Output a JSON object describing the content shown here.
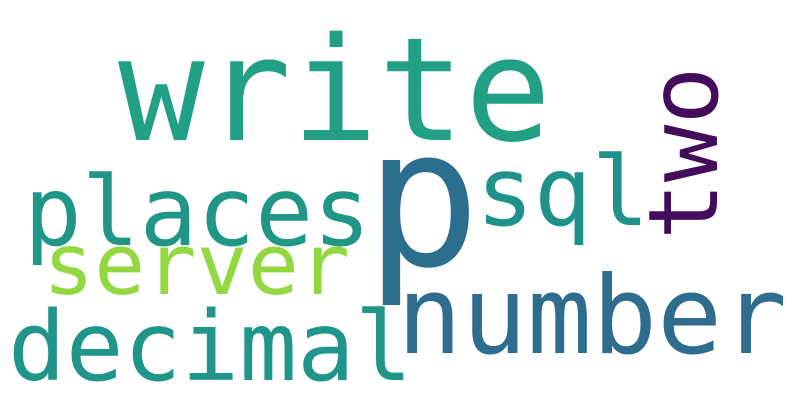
{
  "words": {
    "write": {
      "text": "write",
      "color": "#21a085"
    },
    "p": {
      "text": "p",
      "color": "#2c6e8e"
    },
    "places": {
      "text": "places",
      "color": "#209686"
    },
    "sql": {
      "text": "sql",
      "color": "#1f938b"
    },
    "two": {
      "text": "two",
      "color": "#440d5c"
    },
    "server": {
      "text": "server",
      "color": "#93d741"
    },
    "number": {
      "text": "number",
      "color": "#2e6d8e"
    },
    "decimal": {
      "text": "decimal",
      "color": "#20958a"
    }
  }
}
